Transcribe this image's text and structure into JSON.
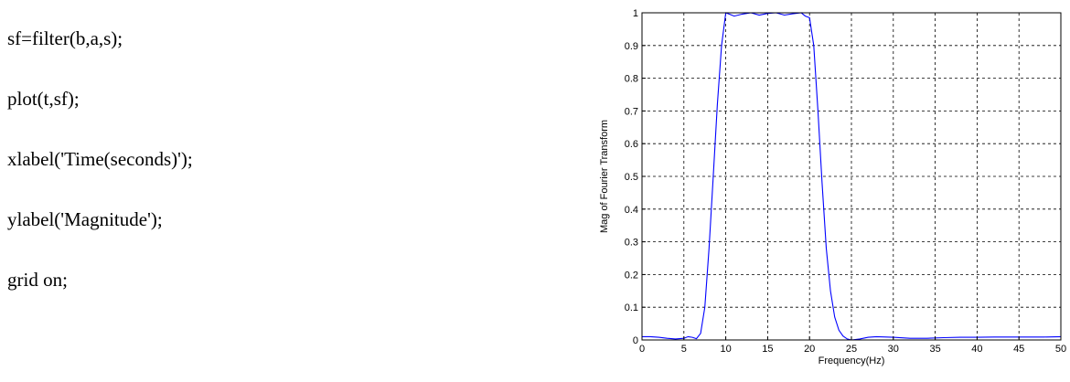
{
  "code": {
    "lines": [
      "sf=filter(b,a,s);",
      "plot(t,sf);",
      "xlabel('Time(seconds)');",
      "ylabel('Magnitude');",
      "grid on;"
    ]
  },
  "chart_data": {
    "type": "line",
    "title": "",
    "xlabel": "Frequency(Hz)",
    "ylabel": "Mag of Fourier Transform",
    "xlim": [
      0,
      50
    ],
    "ylim": [
      0,
      1
    ],
    "xticks": [
      0,
      5,
      10,
      15,
      20,
      25,
      30,
      35,
      40,
      45,
      50
    ],
    "yticks": [
      0,
      0.1,
      0.2,
      0.3,
      0.4,
      0.5,
      0.6,
      0.7,
      0.8,
      0.9,
      1
    ],
    "grid": true,
    "line_color": "#0000ff",
    "series": [
      {
        "x": [
          0,
          1,
          2,
          3,
          4,
          5,
          5.5,
          6,
          6.5,
          7,
          7.5,
          8,
          8.5,
          9,
          9.5,
          10,
          10.5,
          11,
          12,
          13,
          14,
          15,
          16,
          17,
          18,
          19,
          19.5,
          20,
          20.5,
          21,
          21.5,
          22,
          22.5,
          23,
          23.5,
          24,
          24.5,
          25,
          26,
          27,
          28,
          30,
          32,
          34,
          36,
          38,
          40,
          42,
          44,
          46,
          48,
          50
        ],
        "y": [
          0.01,
          0.01,
          0.008,
          0.005,
          0.003,
          0.005,
          0.01,
          0.008,
          0.004,
          0.02,
          0.1,
          0.28,
          0.5,
          0.72,
          0.9,
          1.0,
          0.995,
          0.99,
          0.996,
          1.0,
          0.993,
          0.998,
          1.0,
          0.993,
          0.997,
          1.0,
          0.99,
          0.985,
          0.9,
          0.7,
          0.48,
          0.28,
          0.15,
          0.07,
          0.03,
          0.012,
          0.003,
          0.0,
          0.003,
          0.008,
          0.01,
          0.008,
          0.005,
          0.005,
          0.007,
          0.008,
          0.008,
          0.009,
          0.009,
          0.009,
          0.009,
          0.01
        ]
      }
    ]
  }
}
